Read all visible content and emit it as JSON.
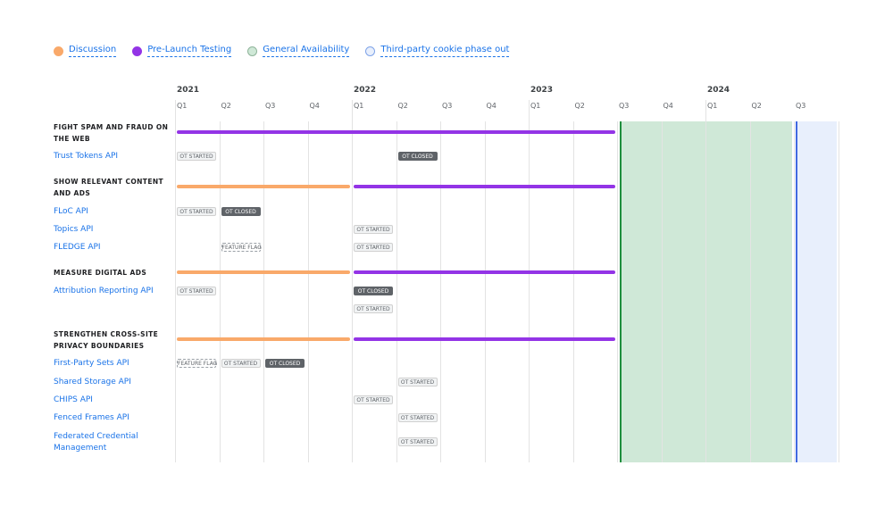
{
  "legend": [
    {
      "label": "Discussion",
      "color": "#f9a96a",
      "border": "#f9a96a"
    },
    {
      "label": "Pre-Launch Testing",
      "color": "#9334e6",
      "border": "#9334e6"
    },
    {
      "label": "General Availability",
      "color": "#cfe8d7",
      "border": "#8fb49a"
    },
    {
      "label": "Third-party cookie phase out",
      "color": "#e8effc",
      "border": "#7ea3e8"
    }
  ],
  "years": [
    "2021",
    "2022",
    "2023",
    "2024"
  ],
  "quarters": [
    "Q1",
    "Q2",
    "Q3",
    "Q4"
  ],
  "timeline_start": "2021-Q1",
  "timeline_end": "2024-Q3",
  "general_availability": {
    "start": "2023-Q3",
    "end": "2024-Q2",
    "color": "#cfe8d7",
    "line": "#1e8e3e"
  },
  "cookie_phase_out": {
    "start": "2024-Q3",
    "color": "#e8effc",
    "line": "#4169e1"
  },
  "badge_labels": {
    "ot-started": "OT STARTED",
    "ot-closed": "OT CLOSED",
    "feature-flag": "FEATURE FLAG"
  },
  "rows": [
    {
      "type": "group",
      "label": "FIGHT SPAM AND FRAUD ON THE WEB",
      "bars": [
        {
          "phase": "Pre-Launch Testing",
          "start": "2021-Q1",
          "end": "2023-Q2"
        }
      ]
    },
    {
      "type": "api",
      "label": "Trust Tokens API",
      "badges": [
        {
          "kind": "ot-started",
          "quarter": "2021-Q1"
        },
        {
          "kind": "ot-closed",
          "quarter": "2022-Q2"
        }
      ]
    },
    {
      "type": "group",
      "label": "SHOW RELEVANT CONTENT AND ADS",
      "bars": [
        {
          "phase": "Discussion",
          "start": "2021-Q1",
          "end": "2021-Q4"
        },
        {
          "phase": "Pre-Launch Testing",
          "start": "2022-Q1",
          "end": "2023-Q2"
        }
      ]
    },
    {
      "type": "api",
      "label": "FLoC API",
      "badges": [
        {
          "kind": "ot-started",
          "quarter": "2021-Q1"
        },
        {
          "kind": "ot-closed",
          "quarter": "2021-Q2"
        }
      ]
    },
    {
      "type": "api",
      "label": "Topics API",
      "badges": [
        {
          "kind": "ot-started",
          "quarter": "2022-Q1"
        }
      ]
    },
    {
      "type": "api",
      "label": "FLEDGE API",
      "badges": [
        {
          "kind": "feature-flag",
          "quarter": "2021-Q2"
        },
        {
          "kind": "ot-started",
          "quarter": "2022-Q1"
        }
      ]
    },
    {
      "type": "group",
      "label": "MEASURE DIGITAL ADS",
      "bars": [
        {
          "phase": "Discussion",
          "start": "2021-Q1",
          "end": "2021-Q4"
        },
        {
          "phase": "Pre-Launch Testing",
          "start": "2022-Q1",
          "end": "2023-Q2"
        }
      ]
    },
    {
      "type": "api",
      "label": "Attribution Reporting API",
      "badges": [
        {
          "kind": "ot-started",
          "quarter": "2021-Q1"
        },
        {
          "kind": "ot-closed",
          "quarter": "2022-Q1"
        }
      ]
    },
    {
      "type": "api",
      "label": "",
      "badges": [
        {
          "kind": "ot-started",
          "quarter": "2022-Q1"
        }
      ]
    },
    {
      "type": "group",
      "label": "STRENGTHEN CROSS-SITE PRIVACY BOUNDARIES",
      "bars": [
        {
          "phase": "Discussion",
          "start": "2021-Q1",
          "end": "2021-Q4"
        },
        {
          "phase": "Pre-Launch Testing",
          "start": "2022-Q1",
          "end": "2023-Q2"
        }
      ]
    },
    {
      "type": "api",
      "label": "First-Party Sets API",
      "badges": [
        {
          "kind": "feature-flag",
          "quarter": "2021-Q1"
        },
        {
          "kind": "ot-started",
          "quarter": "2021-Q2"
        },
        {
          "kind": "ot-closed",
          "quarter": "2021-Q3"
        }
      ]
    },
    {
      "type": "api",
      "label": "Shared Storage API",
      "badges": [
        {
          "kind": "ot-started",
          "quarter": "2022-Q2"
        }
      ]
    },
    {
      "type": "api",
      "label": "CHIPS API",
      "badges": [
        {
          "kind": "ot-started",
          "quarter": "2022-Q1"
        }
      ]
    },
    {
      "type": "api",
      "label": "Fenced Frames API",
      "badges": [
        {
          "kind": "ot-started",
          "quarter": "2022-Q2"
        }
      ]
    },
    {
      "type": "api",
      "label": "Federated Credential Management",
      "badges": [
        {
          "kind": "ot-started",
          "quarter": "2022-Q2"
        }
      ]
    }
  ]
}
